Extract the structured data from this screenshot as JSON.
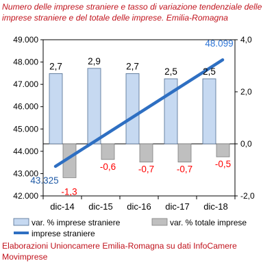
{
  "title": "Numero delle imprese straniere e tasso di variazione tendenziale delle imprese straniere e del totale delle imprese. Emilia-Romagna",
  "source": "Elaborazioni Unioncamere Emilia-Romagna su dati InfoCamere Movimprese",
  "colors": {
    "title": "#c0121c",
    "bar_stranieri": "#c6d9f1",
    "bar_stranieri_border": "#4f6b8f",
    "bar_totale": "#bfbfbf",
    "bar_totale_border": "#7f7f7f",
    "line": "#2e6fc2",
    "label_negative": "#ff0000",
    "label_line_end": "#2e75d6",
    "label_line_start": "#1f5aa6"
  },
  "chart_data": {
    "type": "bar",
    "categories": [
      "dic-14",
      "dic-15",
      "dic-16",
      "dic-17",
      "dic-18"
    ],
    "left_axis": {
      "min": 42000,
      "max": 49000,
      "step": 1000,
      "tick_labels": [
        "42.000",
        "43.000",
        "44.000",
        "45.000",
        "46.000",
        "47.000",
        "48.000",
        "49.000"
      ]
    },
    "right_axis": {
      "min": -2.0,
      "max": 4.0,
      "step": 2.0,
      "tick_labels": [
        "-2,0",
        "0,0",
        "2,0",
        "4,0"
      ]
    },
    "series": [
      {
        "name": "var. % imprese straniere",
        "kind": "bar",
        "axis": "right",
        "values": [
          2.7,
          2.9,
          2.7,
          2.5,
          2.5
        ],
        "labels": [
          "2,7",
          "2,9",
          "2,7",
          "2,5",
          "2,5"
        ]
      },
      {
        "name": "var. % totale imprese",
        "kind": "bar",
        "axis": "right",
        "values": [
          -1.3,
          -0.6,
          -0.7,
          -0.7,
          -0.5
        ],
        "labels": [
          "-1,3",
          "-0,6",
          "-0,7",
          "-0,7",
          "-0,5"
        ]
      },
      {
        "name": "imprese straniere",
        "kind": "line",
        "axis": "left",
        "start_value": 43325,
        "end_value": 48099,
        "start_label": "43.325",
        "end_label": "48.099"
      }
    ],
    "legend_position": "bottom",
    "grid": false
  }
}
